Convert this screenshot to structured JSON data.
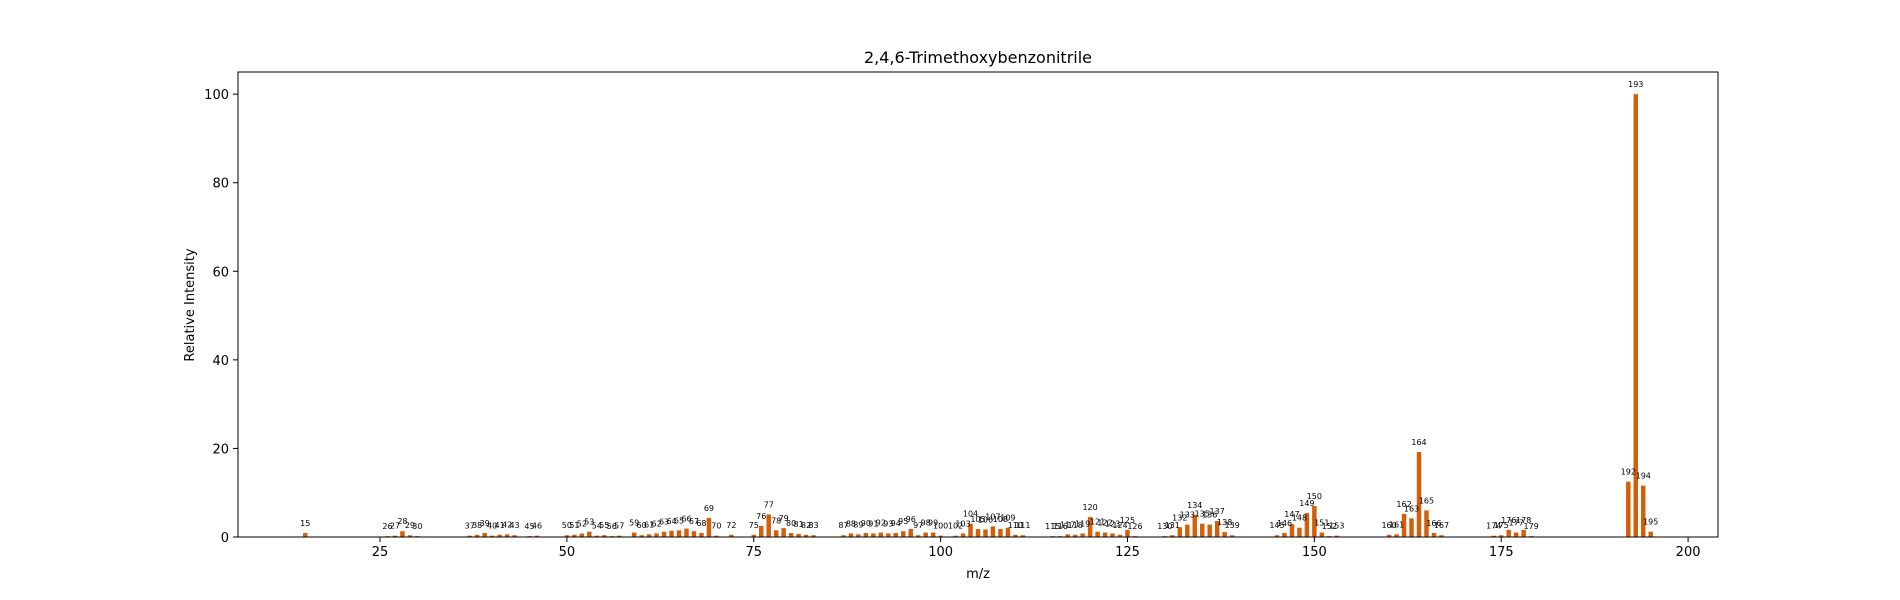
{
  "chart_data": {
    "type": "bar",
    "title": "2,4,6-Trimethoxybenzonitrile",
    "xlabel": "m/z",
    "ylabel": "Relative Intensity",
    "xlim": [
      6,
      204
    ],
    "ylim": [
      0,
      105
    ],
    "xticks": [
      25,
      50,
      75,
      100,
      125,
      150,
      175,
      200
    ],
    "yticks": [
      0,
      20,
      40,
      60,
      80,
      100
    ],
    "bar_color": "#d35f0a",
    "grid": false,
    "x": [
      15,
      26,
      27,
      28,
      29,
      30,
      37,
      38,
      39,
      40,
      41,
      42,
      43,
      45,
      46,
      50,
      51,
      52,
      53,
      54,
      55,
      56,
      57,
      59,
      60,
      61,
      62,
      63,
      64,
      65,
      66,
      67,
      68,
      69,
      70,
      72,
      75,
      76,
      77,
      78,
      79,
      80,
      81,
      82,
      83,
      87,
      88,
      89,
      90,
      91,
      92,
      93,
      94,
      95,
      96,
      97,
      98,
      99,
      100,
      102,
      103,
      104,
      105,
      106,
      107,
      108,
      109,
      110,
      111,
      115,
      116,
      117,
      118,
      119,
      120,
      121,
      122,
      123,
      124,
      125,
      126,
      130,
      131,
      132,
      133,
      134,
      135,
      136,
      137,
      138,
      139,
      145,
      146,
      147,
      148,
      149,
      150,
      151,
      152,
      153,
      160,
      161,
      162,
      163,
      164,
      165,
      166,
      167,
      174,
      175,
      176,
      177,
      178,
      179,
      192,
      193,
      194,
      195
    ],
    "values": [
      0.9,
      0.2,
      0.3,
      1.3,
      0.4,
      0.2,
      0.3,
      0.5,
      0.9,
      0.3,
      0.5,
      0.6,
      0.4,
      0.2,
      0.3,
      0.4,
      0.5,
      0.8,
      1.2,
      0.3,
      0.4,
      0.2,
      0.3,
      1.0,
      0.4,
      0.6,
      0.8,
      1.2,
      1.4,
      1.5,
      1.9,
      1.3,
      0.9,
      4.3,
      0.3,
      0.5,
      0.5,
      2.5,
      5.1,
      1.5,
      2.0,
      0.9,
      0.7,
      0.5,
      0.4,
      0.4,
      0.8,
      0.6,
      0.9,
      0.8,
      1.0,
      0.8,
      0.9,
      1.3,
      1.8,
      0.4,
      1.0,
      1.0,
      0.3,
      0.3,
      0.8,
      3.0,
      1.8,
      1.7,
      2.4,
      1.8,
      2.1,
      0.5,
      0.4,
      0.2,
      0.2,
      0.6,
      0.5,
      0.8,
      4.5,
      1.2,
      1.0,
      0.8,
      0.5,
      1.6,
      0.2,
      0.2,
      0.4,
      2.2,
      2.8,
      5.0,
      3.0,
      2.8,
      3.6,
      1.1,
      0.4,
      0.4,
      0.9,
      2.9,
      2.1,
      5.4,
      7.0,
      1.0,
      0.2,
      0.3,
      0.5,
      0.6,
      5.2,
      4.2,
      19.2,
      6.0,
      0.9,
      0.4,
      0.3,
      0.4,
      1.6,
      1.0,
      1.6,
      0.2,
      12.5,
      100.0,
      11.6,
      1.2
    ]
  }
}
